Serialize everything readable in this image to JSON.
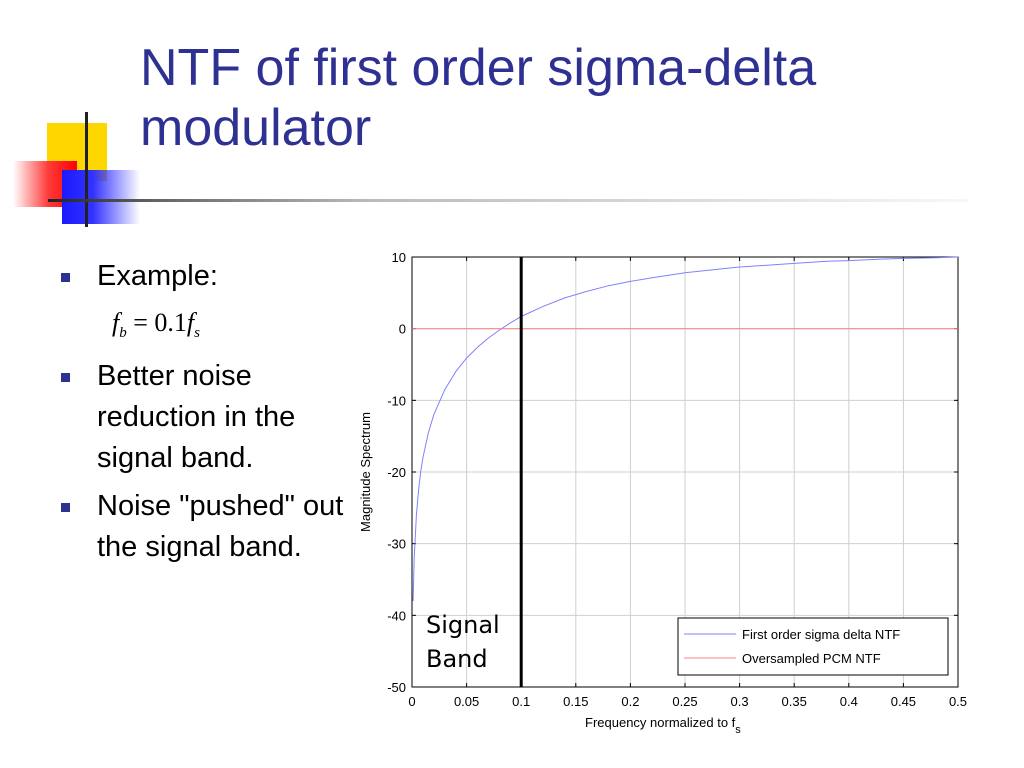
{
  "slide": {
    "title": "NTF of first order sigma-delta modulator",
    "accent_color": "#2e3192"
  },
  "bullets": [
    {
      "text": "Example:"
    },
    {
      "text": "Better noise reduction in the signal band."
    },
    {
      "text": "Noise \"pushed\" out the signal band."
    }
  ],
  "formula": {
    "lhs": "f",
    "lhs_sub": "b",
    "eq": "=",
    "coef": "0.1",
    "rhs": "f",
    "rhs_sub": "s"
  },
  "chart_data": {
    "type": "line",
    "title": "",
    "xlabel": "Frequency normalized to f",
    "xlabel_sub": "s",
    "ylabel": "Magnitude Spectrum",
    "xlim": [
      0,
      0.5
    ],
    "ylim": [
      -50,
      10
    ],
    "xticks": [
      0,
      0.05,
      0.1,
      0.15,
      0.2,
      0.25,
      0.3,
      0.35,
      0.4,
      0.45,
      0.5
    ],
    "xtick_labels": [
      "0",
      "0.05",
      "0.1",
      "0.15",
      "0.2",
      "0.25",
      "0.3",
      "0.35",
      "0.4",
      "0.45",
      "0.5"
    ],
    "yticks": [
      10,
      0,
      -10,
      -20,
      -30,
      -40,
      -50
    ],
    "ytick_labels": [
      "10",
      "0",
      "-10",
      "-20",
      "-30",
      "-40",
      "-50"
    ],
    "grid": true,
    "legend_position": "bottom-right",
    "series": [
      {
        "name": "First order sigma delta NTF",
        "color": "#8080ff",
        "x": [
          0.001,
          0.002,
          0.004,
          0.006,
          0.008,
          0.01,
          0.015,
          0.02,
          0.03,
          0.04,
          0.05,
          0.06,
          0.07,
          0.08,
          0.09,
          0.1,
          0.12,
          0.14,
          0.16,
          0.18,
          0.2,
          0.22,
          0.25,
          0.28,
          0.3,
          0.33,
          0.35,
          0.38,
          0.4,
          0.43,
          0.45,
          0.48,
          0.5
        ],
        "y": [
          -38.0,
          -32.0,
          -26.0,
          -22.5,
          -20.0,
          -18.0,
          -14.5,
          -12.0,
          -8.5,
          -6.0,
          -4.1,
          -2.6,
          -1.3,
          -0.2,
          0.8,
          1.7,
          3.1,
          4.3,
          5.2,
          6.0,
          6.6,
          7.1,
          7.8,
          8.3,
          8.6,
          8.9,
          9.1,
          9.4,
          9.5,
          9.7,
          9.8,
          9.9,
          10.0
        ]
      },
      {
        "name": "Oversampled PCM NTF",
        "color": "#ff8080",
        "x": [
          0,
          0.5
        ],
        "y": [
          0,
          0
        ]
      }
    ],
    "vertical_marker": {
      "x": 0.1,
      "color": "#000000"
    },
    "annotation": {
      "line1": "Signal",
      "line2": "Band"
    }
  }
}
